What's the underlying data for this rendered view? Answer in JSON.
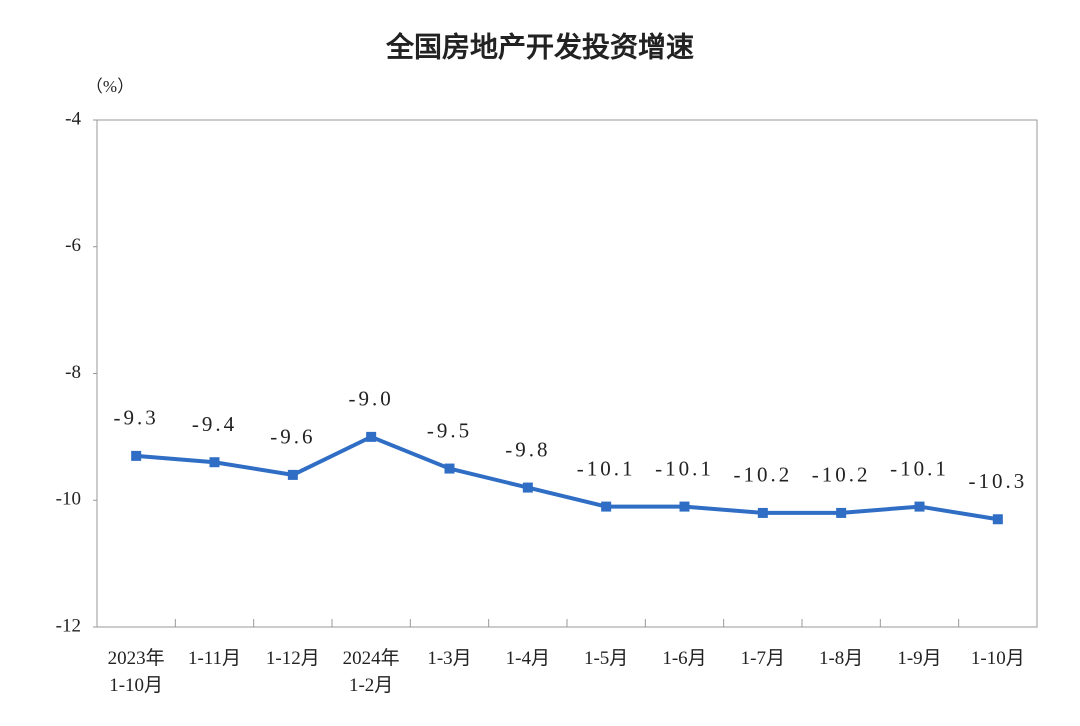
{
  "chart_data": {
    "type": "line",
    "title": "全国房地产开发投资增速",
    "y_unit": "（%）",
    "categories": [
      "2023年\n1-10月",
      "1-11月",
      "1-12月",
      "2024年\n1-2月",
      "1-3月",
      "1-4月",
      "1-5月",
      "1-6月",
      "1-7月",
      "1-8月",
      "1-9月",
      "1-10月"
    ],
    "series": [
      {
        "name": "全国房地产开发投资增速",
        "color": "#2f6ec4",
        "values": [
          -9.3,
          -9.4,
          -9.6,
          -9.0,
          -9.5,
          -9.8,
          -10.1,
          -10.1,
          -10.2,
          -10.2,
          -10.1,
          -10.3
        ],
        "value_labels": [
          "-9.3",
          "-9.4",
          "-9.6",
          "-9.0",
          "-9.5",
          "-9.8",
          "-10.1",
          "-10.1",
          "-10.2",
          "-10.2",
          "-10.1",
          "-10.3"
        ]
      }
    ],
    "ylim": [
      -12,
      -4
    ],
    "yticks": [
      -12,
      -10,
      -8,
      -6,
      -4
    ],
    "grid": false
  }
}
